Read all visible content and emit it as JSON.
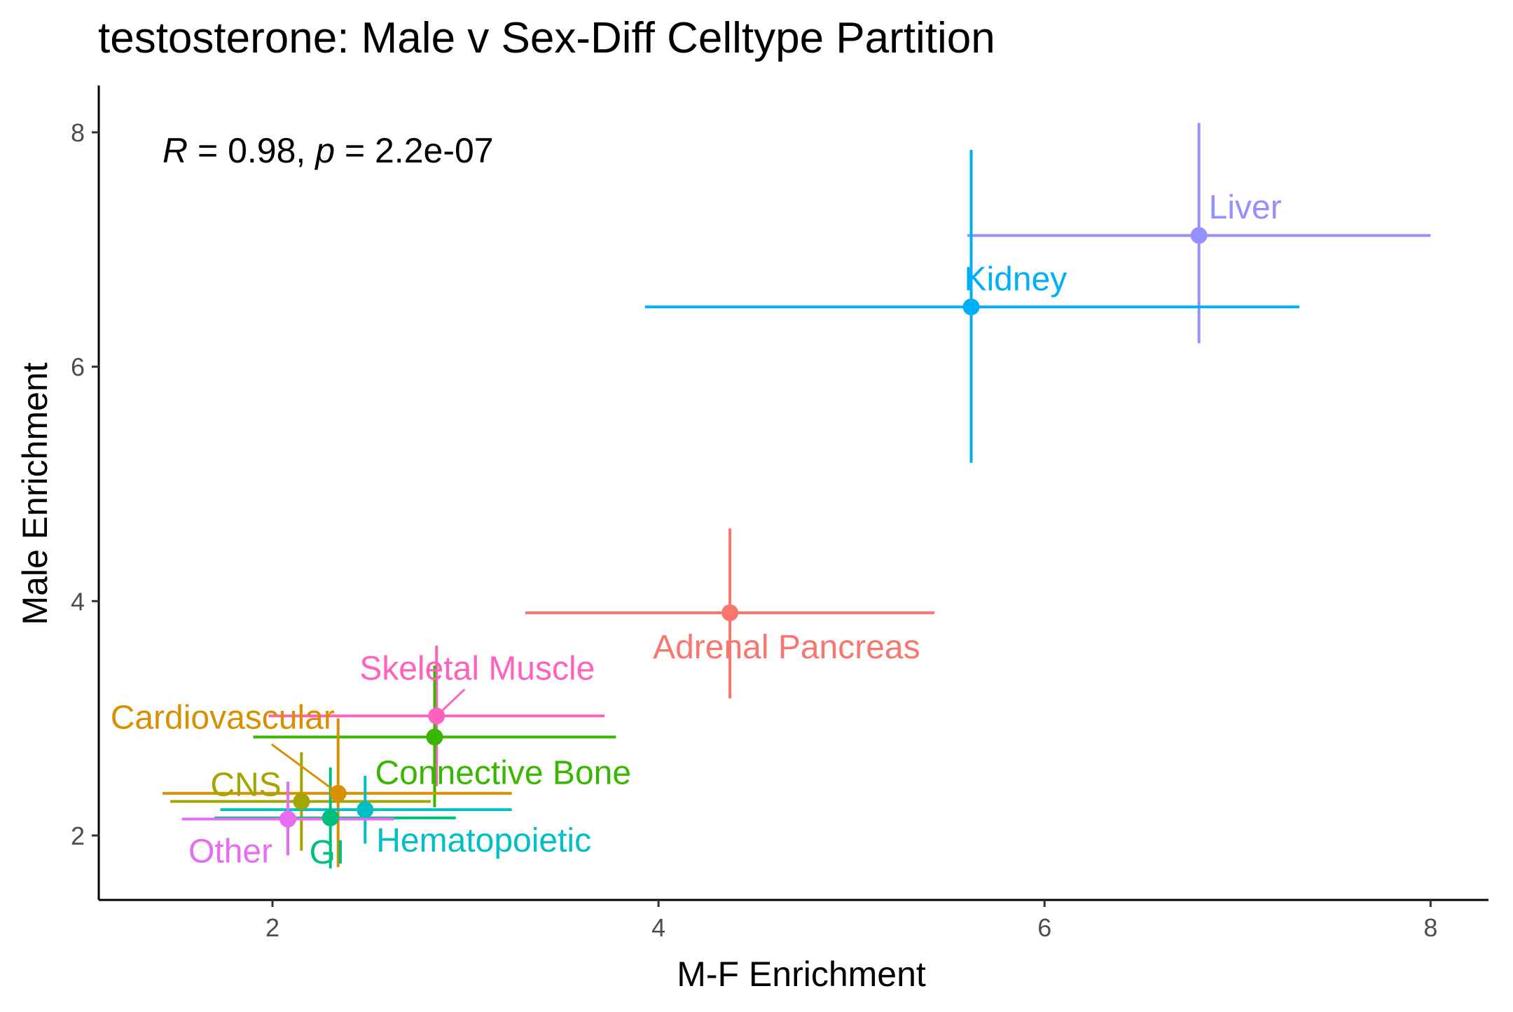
{
  "chart_data": {
    "type": "scatter",
    "title": "testosterone: Male v Sex-Diff Celltype Partition",
    "xlabel": "M-F Enrichment",
    "ylabel": "Male Enrichment",
    "xlim": [
      1.1,
      8.3
    ],
    "ylim": [
      1.45,
      8.4
    ],
    "xticks": [
      2,
      4,
      6,
      8
    ],
    "yticks": [
      2,
      4,
      6,
      8
    ],
    "grid": false,
    "legend": "none",
    "annotation": {
      "r_symbol": "R",
      "r_text": " = 0.98, ",
      "p_symbol": "p",
      "p_text": " = 2.2e-07"
    },
    "points": [
      {
        "label": "Liver",
        "x": 6.8,
        "y": 7.12,
        "x_err": [
          5.6,
          8.0
        ],
        "y_err": [
          6.2,
          8.08
        ],
        "color": "#9590FF"
      },
      {
        "label": "Kidney",
        "x": 5.62,
        "y": 6.51,
        "x_err": [
          3.93,
          7.32
        ],
        "y_err": [
          5.18,
          7.85
        ],
        "color": "#00B0F6"
      },
      {
        "label": "Adrenal Pancreas",
        "x": 4.37,
        "y": 3.9,
        "x_err": [
          3.31,
          5.43
        ],
        "y_err": [
          3.17,
          4.62
        ],
        "color": "#F8766D"
      },
      {
        "label": "Skeletal Muscle",
        "x": 2.85,
        "y": 3.02,
        "x_err": [
          1.98,
          3.72
        ],
        "y_err": [
          2.42,
          3.62
        ],
        "color": "#FF62BC"
      },
      {
        "label": "Connective Bone",
        "x": 2.84,
        "y": 2.84,
        "x_err": [
          1.9,
          3.78
        ],
        "y_err": [
          2.24,
          3.45
        ],
        "color": "#39B600"
      },
      {
        "label": "Cardiovascular",
        "x": 2.34,
        "y": 2.36,
        "x_err": [
          1.43,
          3.24
        ],
        "y_err": [
          1.73,
          3.0
        ],
        "color": "#D89000"
      },
      {
        "label": "CNS",
        "x": 2.15,
        "y": 2.29,
        "x_err": [
          1.47,
          2.82
        ],
        "y_err": [
          1.87,
          2.71
        ],
        "color": "#A3A500"
      },
      {
        "label": "Hematopoietic",
        "x": 2.48,
        "y": 2.22,
        "x_err": [
          1.73,
          3.24
        ],
        "y_err": [
          1.93,
          2.51
        ],
        "color": "#00BFC4"
      },
      {
        "label": "GI",
        "x": 2.3,
        "y": 2.15,
        "x_err": [
          1.7,
          2.95
        ],
        "y_err": [
          1.72,
          2.58
        ],
        "color": "#00BF7D"
      },
      {
        "label": "Other",
        "x": 2.08,
        "y": 2.14,
        "x_err": [
          1.53,
          2.63
        ],
        "y_err": [
          1.83,
          2.46
        ],
        "color": "#E76BF3"
      }
    ]
  }
}
